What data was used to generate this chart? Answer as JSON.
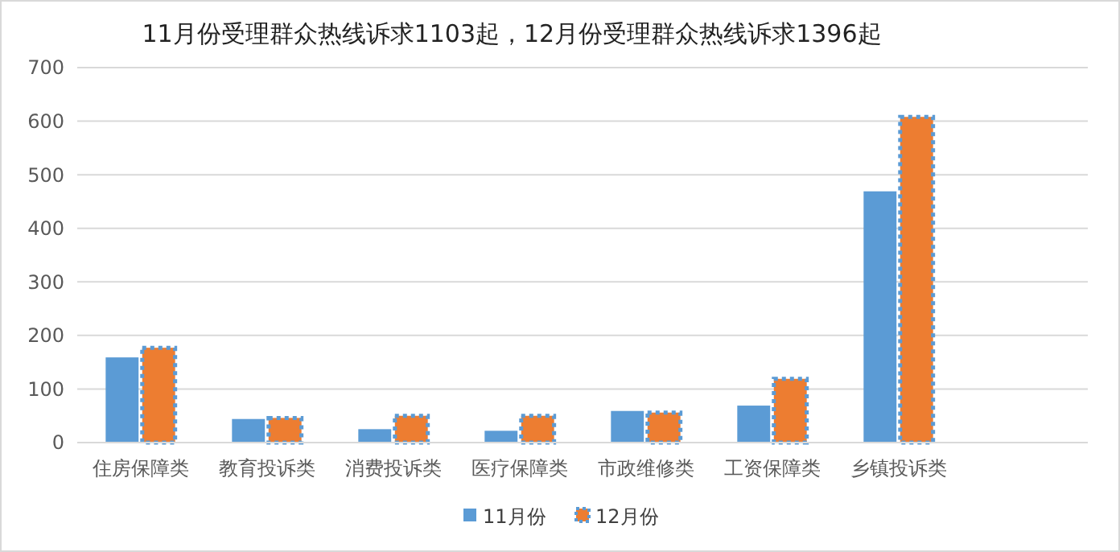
{
  "chart_data": {
    "type": "bar",
    "title": "11月份受理群众热线诉求1103起，12月份受理群众热线诉求1396起",
    "categories": [
      "住房保障类",
      "教育投诉类",
      "消费投诉类",
      "医疗保障类",
      "市政维修类",
      "工资保障类",
      "乡镇投诉类",
      null
    ],
    "series": [
      {
        "name": "11月份",
        "color": "#5b9bd5",
        "values": [
          159,
          44,
          25,
          22,
          59,
          69,
          469,
          null
        ]
      },
      {
        "name": "12月份",
        "color": "#ed7d31",
        "values": [
          177,
          46,
          50,
          50,
          56,
          119,
          608,
          null
        ]
      }
    ],
    "ylim": [
      0,
      700
    ],
    "yticks": [
      0,
      100,
      200,
      300,
      400,
      500,
      600,
      700
    ],
    "grid": "y",
    "legend": "bottom"
  }
}
